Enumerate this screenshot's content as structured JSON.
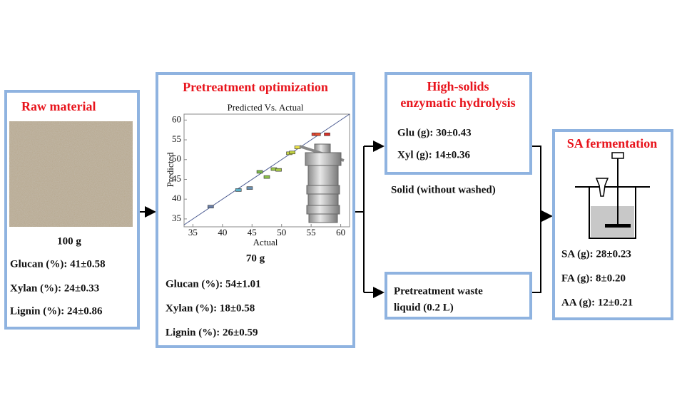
{
  "raw_material": {
    "title": "Raw material",
    "mass": "100 g",
    "composition": [
      "Glucan (%): 41±0.58",
      "Xylan (%): 24±0.33",
      "Lignin (%): 24±0.86"
    ]
  },
  "pretreatment": {
    "title": "Pretreatment optimization",
    "mass": "70 g",
    "composition": [
      "Glucan (%): 54±1.01",
      "Xylan (%): 18±0.58",
      "Lignin (%): 26±0.59"
    ],
    "plot": {
      "type": "scatter",
      "title": "Predicted Vs. Actual",
      "x_label": "Actual",
      "y_label": "Predicted",
      "x": [
        38,
        42.7,
        44.6,
        46.3,
        47.5,
        48.7,
        49.5,
        51.3,
        51.8,
        52.7,
        55.6,
        56.1,
        57.7
      ],
      "y": [
        38.1,
        42.3,
        42.8,
        46.9,
        45.6,
        47.6,
        47.4,
        51.6,
        51.8,
        53.1,
        56.4,
        56.4,
        56.4
      ],
      "colors": [
        "#6a7fa8",
        "#5bb0c8",
        "#6a8fb0",
        "#7cb84a",
        "#8cc04a",
        "#9ac84a",
        "#a8c848",
        "#c8d848",
        "#c0d040",
        "#e8e048",
        "#e84030",
        "#e85030",
        "#d83028"
      ],
      "xlim": [
        33.5,
        61.5
      ],
      "ylim": [
        33,
        61.5
      ],
      "xticks": [
        35,
        40,
        45,
        50,
        55,
        60
      ],
      "yticks": [
        35,
        40,
        45,
        50,
        55,
        60
      ]
    }
  },
  "hydrolysis": {
    "title_lines": [
      "High-solids",
      "enzymatic hydrolysis"
    ],
    "results": [
      "Glu (g): 30±0.43",
      "Xyl (g): 14±0.36"
    ],
    "solid_note": "Solid (without washed)"
  },
  "waste_liquid": {
    "label_lines": [
      "Pretreatment waste",
      "liquid (0.2 L)"
    ]
  },
  "fermentation": {
    "title": "SA fermentation",
    "results": [
      "SA (g): 28±0.23",
      "FA (g): 8±0.20",
      "AA (g): 12±0.21"
    ]
  }
}
